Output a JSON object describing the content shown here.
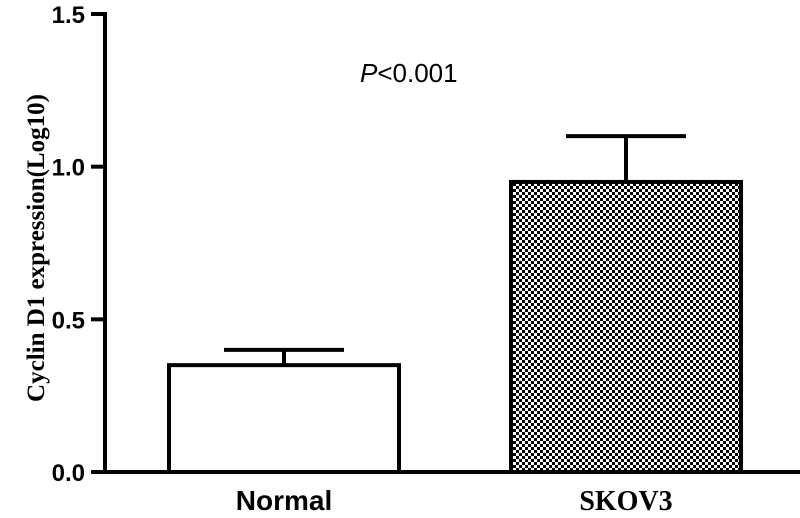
{
  "chart_data": {
    "type": "bar",
    "title": "",
    "xlabel": "",
    "ylabel": "Cyclin D1 expression(Log10)",
    "ylim": [
      0,
      1.5
    ],
    "yticks": [
      "0.0",
      "0.5",
      "1.0",
      "1.5"
    ],
    "categories": [
      "Normal",
      "SKOV3"
    ],
    "values": [
      0.35,
      0.95
    ],
    "errors": [
      0.05,
      0.15
    ],
    "bar_fills": [
      "white",
      "checkered"
    ],
    "annotation": {
      "italic": "P",
      "rest": "<0.001"
    },
    "grid": false,
    "legend": "none"
  }
}
